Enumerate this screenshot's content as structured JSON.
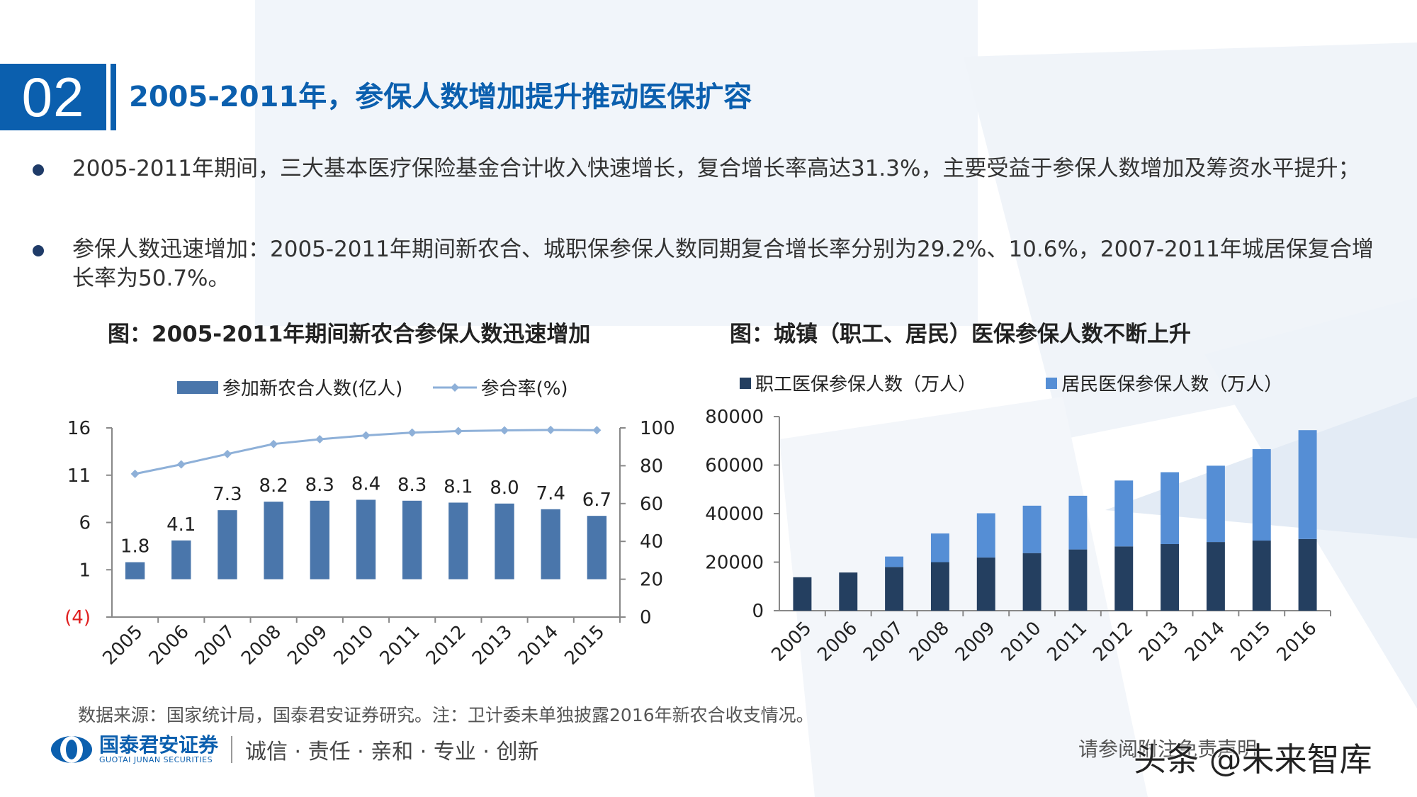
{
  "section": {
    "number": "02",
    "title": "2005-2011年，参保人数增加提升推动医保扩容"
  },
  "bullets": [
    {
      "text": "2005-2011年期间，三大基本医疗保险基金合计收入快速增长，复合增长率高达31.3%，主要受益于参保人数增加及筹资水平提升；"
    },
    {
      "text": "参保人数迅速增加：2005-2011年期间新农合、城职保参保人数同期复合增长率分别为29.2%、10.6%，2007-2011年城居保复合增长率为50.7%。"
    }
  ],
  "chart_data": [
    {
      "type": "bar",
      "title": "图：2005-2011年期间新农合参保人数迅速增加",
      "categories": [
        "2005",
        "2006",
        "2007",
        "2008",
        "2009",
        "2010",
        "2011",
        "2012",
        "2013",
        "2014",
        "2015"
      ],
      "series": [
        {
          "name": "参加新农合人数(亿人)",
          "type": "bar",
          "axis": "left",
          "color": "#4a76ab",
          "values": [
            1.8,
            4.1,
            7.3,
            8.2,
            8.3,
            8.4,
            8.3,
            8.1,
            8.0,
            7.4,
            6.7
          ],
          "labels": [
            "1.8",
            "4.1",
            "7.3",
            "8.2",
            "8.3",
            "8.4",
            "8.3",
            "8.1",
            "8.0",
            "7.4",
            "6.7"
          ]
        },
        {
          "name": "参合率(%)",
          "type": "line",
          "axis": "right",
          "color": "#8eb0d8",
          "values": [
            75.7,
            80.7,
            86.2,
            91.5,
            94.0,
            96.0,
            97.5,
            98.3,
            98.7,
            98.9,
            98.8
          ]
        }
      ],
      "left_axis": {
        "min": -4,
        "max": 16,
        "ticks": [
          "(4)",
          "1",
          "6",
          "11",
          "16"
        ],
        "tick_values": [
          -4,
          1,
          6,
          11,
          16
        ],
        "negative_tick_color": "#e02020"
      },
      "right_axis": {
        "min": 0,
        "max": 100,
        "ticks": [
          "0",
          "20",
          "40",
          "60",
          "80",
          "100"
        ],
        "tick_values": [
          0,
          20,
          40,
          60,
          80,
          100
        ]
      },
      "legend_position": "top",
      "grid": false
    },
    {
      "type": "bar",
      "stacked": true,
      "title": "图：城镇（职工、居民）医保参保人数不断上升",
      "categories": [
        "2005",
        "2006",
        "2007",
        "2008",
        "2009",
        "2010",
        "2011",
        "2012",
        "2013",
        "2014",
        "2015",
        "2016"
      ],
      "series": [
        {
          "name": "职工医保参保人数（万人）",
          "color": "#243f60",
          "values": [
            13783,
            15732,
            18020,
            19996,
            21937,
            23735,
            25227,
            26486,
            27443,
            28296,
            28893,
            29532
          ]
        },
        {
          "name": "居民医保参保人数（万人）",
          "color": "#558ed5",
          "values": [
            0,
            0,
            4291,
            11826,
            18210,
            19528,
            22116,
            27156,
            29629,
            31451,
            37689,
            44860
          ]
        }
      ],
      "y_axis": {
        "min": 0,
        "max": 80000,
        "ticks": [
          "0",
          "20000",
          "40000",
          "60000",
          "80000"
        ],
        "tick_values": [
          0,
          20000,
          40000,
          60000,
          80000
        ]
      },
      "legend_position": "top",
      "grid": false
    }
  ],
  "source_note": "数据来源：国家统计局，国泰君安证券研究。注：卫计委未单独披露2016年新农合收支情况。",
  "footer": {
    "logo_name": "国泰君安证券",
    "logo_sub": "GUOTAI JUNAN SECURITIES",
    "slogan": "诚信 · 责任 · 亲和 · 专业 · 创新",
    "disclaimer": "请参阅附注免责声明",
    "watermark": "头条 @未来智库"
  },
  "colors": {
    "brand": "#0b5fae",
    "bar1": "#4a76ab",
    "line1": "#8eb0d8",
    "stack_dark": "#243f60",
    "stack_light": "#558ed5"
  }
}
